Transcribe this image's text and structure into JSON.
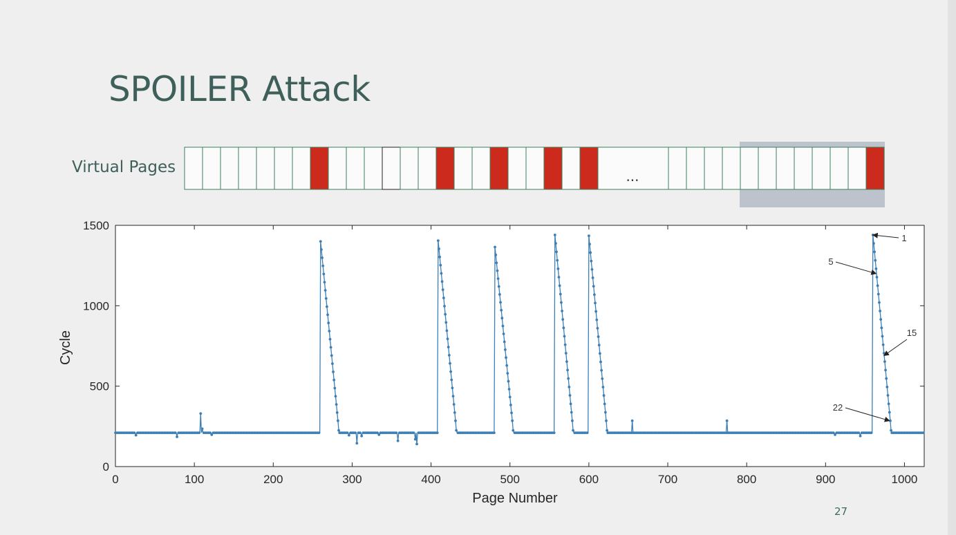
{
  "slide": {
    "title": "SPOILER Attack",
    "virtual_pages_label": "Virtual Pages",
    "ellipsis": "...",
    "page_number": "27"
  },
  "colors": {
    "title": "#3f5f5a",
    "page_border": "#3e7f5c",
    "page_highlight": "#cc2a1c",
    "window_highlight": "#bcc3cd",
    "series": "#3d7fb5"
  },
  "virtual_pages": {
    "before_ellipsis": 23,
    "after_ellipsis": 12,
    "red_cells": [
      7,
      14,
      17,
      20,
      22,
      34
    ],
    "dark_border_cells": [
      11
    ],
    "highlight_window_cells": [
      27,
      34
    ]
  },
  "chart_data": {
    "type": "line",
    "xlabel": "Page Number",
    "ylabel": "Cycle",
    "xlim": [
      0,
      1025
    ],
    "ylim": [
      0,
      1500
    ],
    "xticks": [
      0,
      100,
      200,
      300,
      400,
      500,
      600,
      700,
      800,
      900,
      1000
    ],
    "yticks": [
      0,
      500,
      1000,
      1500
    ],
    "baseline": 210,
    "peaks": [
      {
        "start": 260,
        "peak": 1400,
        "len": 22
      },
      {
        "start": 409,
        "peak": 1405,
        "len": 22
      },
      {
        "start": 481,
        "peak": 1365,
        "len": 22
      },
      {
        "start": 557,
        "peak": 1440,
        "len": 22
      },
      {
        "start": 600,
        "peak": 1435,
        "len": 22
      },
      {
        "start": 960,
        "peak": 1440,
        "len": 22
      }
    ],
    "outliers": [
      {
        "x": 26,
        "y": 195
      },
      {
        "x": 78,
        "y": 185
      },
      {
        "x": 108,
        "y": 330
      },
      {
        "x": 110,
        "y": 235
      },
      {
        "x": 122,
        "y": 198
      },
      {
        "x": 296,
        "y": 195
      },
      {
        "x": 306,
        "y": 145
      },
      {
        "x": 312,
        "y": 190
      },
      {
        "x": 334,
        "y": 198
      },
      {
        "x": 358,
        "y": 160
      },
      {
        "x": 380,
        "y": 170
      },
      {
        "x": 382,
        "y": 140
      },
      {
        "x": 655,
        "y": 285
      },
      {
        "x": 775,
        "y": 285
      },
      {
        "x": 912,
        "y": 198
      },
      {
        "x": 944,
        "y": 190
      }
    ],
    "annotations": [
      {
        "label": "1",
        "x": 960,
        "y": 1440
      },
      {
        "label": "5",
        "x": 964,
        "y": 1200
      },
      {
        "label": "15",
        "x": 974,
        "y": 690
      },
      {
        "label": "22",
        "x": 981,
        "y": 285
      }
    ]
  }
}
